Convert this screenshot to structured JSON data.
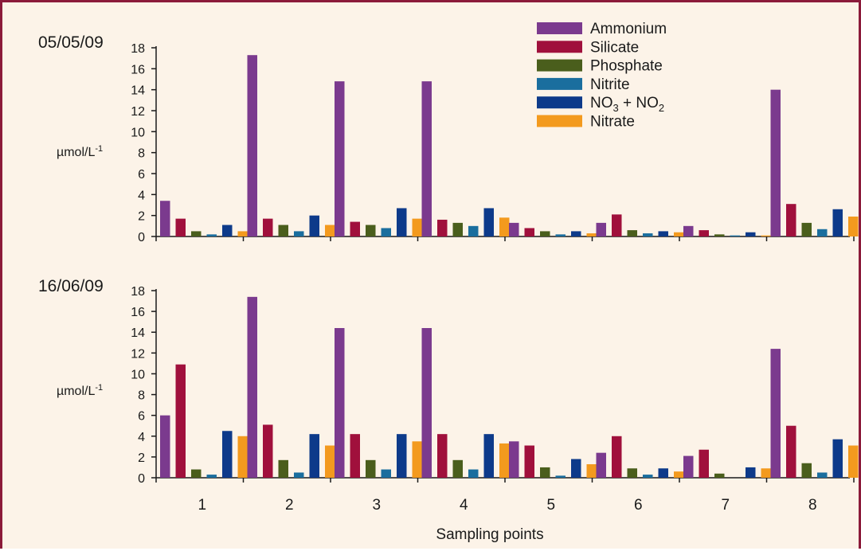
{
  "chart_data": [
    {
      "type": "bar",
      "title": "05/05/09",
      "ylabel": "µmol/L",
      "ylabel_sup": "-1",
      "xlabel": "",
      "categories": [
        "1",
        "2",
        "3",
        "4",
        "5",
        "6",
        "7",
        "8"
      ],
      "ylim": [
        0,
        18
      ],
      "yticks": [
        0,
        2,
        4,
        6,
        8,
        10,
        12,
        14,
        16,
        18
      ],
      "show_xtick_labels": false,
      "series": [
        {
          "name": "Ammonium",
          "color": "#7b3a8e",
          "values": [
            3.4,
            17.3,
            14.8,
            14.8,
            1.3,
            1.3,
            1.0,
            14.0
          ]
        },
        {
          "name": "Silicate",
          "color": "#a0103c",
          "values": [
            1.7,
            1.7,
            1.4,
            1.6,
            0.8,
            2.1,
            0.6,
            3.1
          ]
        },
        {
          "name": "Phosphate",
          "color": "#4a5e1c",
          "values": [
            0.5,
            1.1,
            1.1,
            1.3,
            0.5,
            0.6,
            0.2,
            1.3
          ]
        },
        {
          "name": "Nitrite",
          "color": "#1a6e9e",
          "values": [
            0.2,
            0.5,
            0.8,
            1.0,
            0.2,
            0.3,
            0.1,
            0.7
          ]
        },
        {
          "name": "NO3 + NO2",
          "color": "#0d3a8a",
          "values": [
            1.1,
            2.0,
            2.7,
            2.7,
            0.5,
            0.5,
            0.4,
            2.6
          ]
        },
        {
          "name": "Nitrate",
          "color": "#f39a1e",
          "values": [
            0.5,
            1.1,
            1.7,
            1.8,
            0.3,
            0.4,
            0.1,
            1.9
          ]
        }
      ]
    },
    {
      "type": "bar",
      "title": "16/06/09",
      "ylabel": "µmol/L",
      "ylabel_sup": "-1",
      "xlabel": "Sampling points",
      "categories": [
        "1",
        "2",
        "3",
        "4",
        "5",
        "6",
        "7",
        "8"
      ],
      "ylim": [
        0,
        18
      ],
      "yticks": [
        0,
        2,
        4,
        6,
        8,
        10,
        12,
        14,
        16,
        18
      ],
      "show_xtick_labels": true,
      "series": [
        {
          "name": "Ammonium",
          "color": "#7b3a8e",
          "values": [
            6.0,
            17.4,
            14.4,
            14.4,
            3.5,
            2.4,
            2.1,
            12.4
          ]
        },
        {
          "name": "Silicate",
          "color": "#a0103c",
          "values": [
            10.9,
            5.1,
            4.2,
            4.2,
            3.1,
            4.0,
            2.7,
            5.0
          ]
        },
        {
          "name": "Phosphate",
          "color": "#4a5e1c",
          "values": [
            0.8,
            1.7,
            1.7,
            1.7,
            1.0,
            0.9,
            0.4,
            1.4
          ]
        },
        {
          "name": "Nitrite",
          "color": "#1a6e9e",
          "values": [
            0.3,
            0.5,
            0.8,
            0.8,
            0.2,
            0.3,
            0.0,
            0.5
          ]
        },
        {
          "name": "NO3 + NO2",
          "color": "#0d3a8a",
          "values": [
            4.5,
            4.2,
            4.2,
            4.2,
            1.8,
            0.9,
            1.0,
            3.7
          ]
        },
        {
          "name": "Nitrate",
          "color": "#f39a1e",
          "values": [
            4.0,
            3.1,
            3.5,
            3.3,
            1.3,
            0.6,
            0.9,
            3.1
          ]
        }
      ]
    }
  ],
  "legend": {
    "placement": "top-right",
    "items": [
      {
        "label": "Ammonium",
        "color": "#7b3a8e"
      },
      {
        "label": "Silicate",
        "color": "#a0103c"
      },
      {
        "label": "Phosphate",
        "color": "#4a5e1c"
      },
      {
        "label": "Nitrite",
        "color": "#1a6e9e"
      },
      {
        "label": "NO",
        "sub1": "3",
        "mid": " + NO",
        "sub2": "2",
        "color": "#0d3a8a"
      },
      {
        "label": "Nitrate",
        "color": "#f39a1e"
      }
    ]
  },
  "colors": {
    "background": "#fcf3e8",
    "frame": "#8b1a3a",
    "axis": "#1a1a1a"
  }
}
